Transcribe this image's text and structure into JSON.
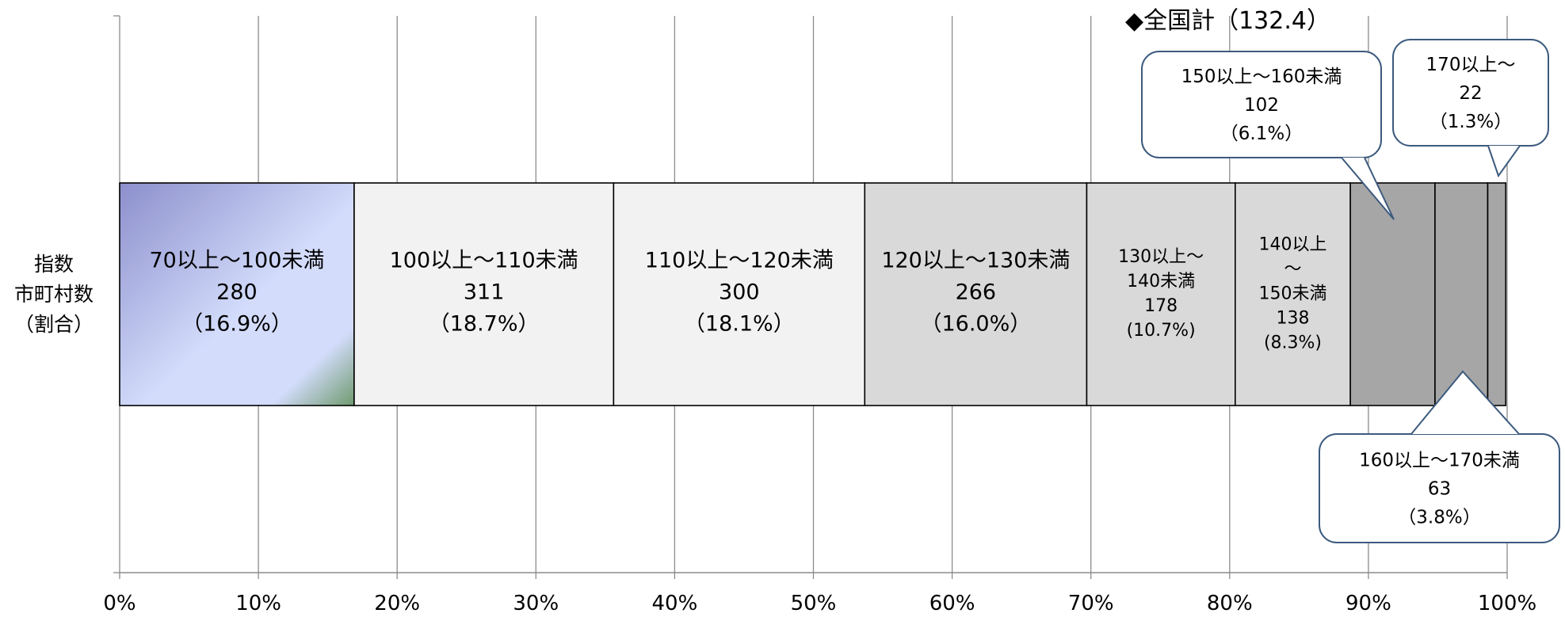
{
  "chart_data": {
    "type": "bar",
    "orientation": "horizontal-stacked-100",
    "category_label_lines": [
      "指数",
      "市町村数",
      "（割合）"
    ],
    "xlim": [
      0,
      100
    ],
    "x_ticks": [
      "0%",
      "10%",
      "20%",
      "30%",
      "40%",
      "50%",
      "60%",
      "70%",
      "80%",
      "90%",
      "100%"
    ],
    "grid": "vertical",
    "marker": {
      "label": "◆全国計（132.4）",
      "value": 132.4
    },
    "segments": [
      {
        "range": "70以上～100未満",
        "count": "280",
        "share": "（16.9%）",
        "percent": 16.9,
        "color": "#c5ceee",
        "label_lines": [
          "70以上～100未満",
          "280",
          "（16.9%）"
        ]
      },
      {
        "range": "100以上～110未満",
        "count": "311",
        "share": "（18.7%）",
        "percent": 18.7,
        "color": "#f2f2f2",
        "label_lines": [
          "100以上～110未満",
          "311",
          "（18.7%）"
        ]
      },
      {
        "range": "110以上～120未満",
        "count": "300",
        "share": "（18.1%）",
        "percent": 18.1,
        "color": "#f2f2f2",
        "label_lines": [
          "110以上～120未満",
          "300",
          "（18.1%）"
        ]
      },
      {
        "range": "120以上～130未満",
        "count": "266",
        "share": "（16.0%）",
        "percent": 16.0,
        "color": "#d9d9d9",
        "label_lines": [
          "120以上～130未満",
          "266",
          "（16.0%）"
        ]
      },
      {
        "range": "130以上～140未満",
        "count": "178",
        "share": "(10.7%)",
        "percent": 10.7,
        "color": "#d9d9d9",
        "label_lines": [
          "130以上～",
          "140未満",
          "178",
          "(10.7%)"
        ]
      },
      {
        "range": "140以上～150未満",
        "count": "138",
        "share": "(8.3%)",
        "percent": 8.3,
        "color": "#d9d9d9",
        "label_lines": [
          "140以上",
          "～",
          "150未満",
          "138",
          "(8.3%)"
        ]
      },
      {
        "range": "150以上～160未満",
        "count": "102",
        "share": "（6.1%）",
        "percent": 6.1,
        "color": "#a6a6a6",
        "label_lines": []
      },
      {
        "range": "160以上～170未満",
        "count": "63",
        "share": "（3.8%）",
        "percent": 3.8,
        "color": "#a6a6a6",
        "label_lines": []
      },
      {
        "range": "170以上～",
        "count": "22",
        "share": "（1.3%）",
        "percent": 1.3,
        "color": "#a6a6a6",
        "label_lines": []
      }
    ],
    "callouts": [
      {
        "segment": 6,
        "lines": [
          "150以上～160未満",
          "102",
          "（6.1%）"
        ]
      },
      {
        "segment": 8,
        "lines": [
          "170以上～",
          "22",
          "（1.3%）"
        ]
      },
      {
        "segment": 7,
        "lines": [
          "160以上～170未満",
          "63",
          "（3.8%）"
        ]
      }
    ]
  }
}
